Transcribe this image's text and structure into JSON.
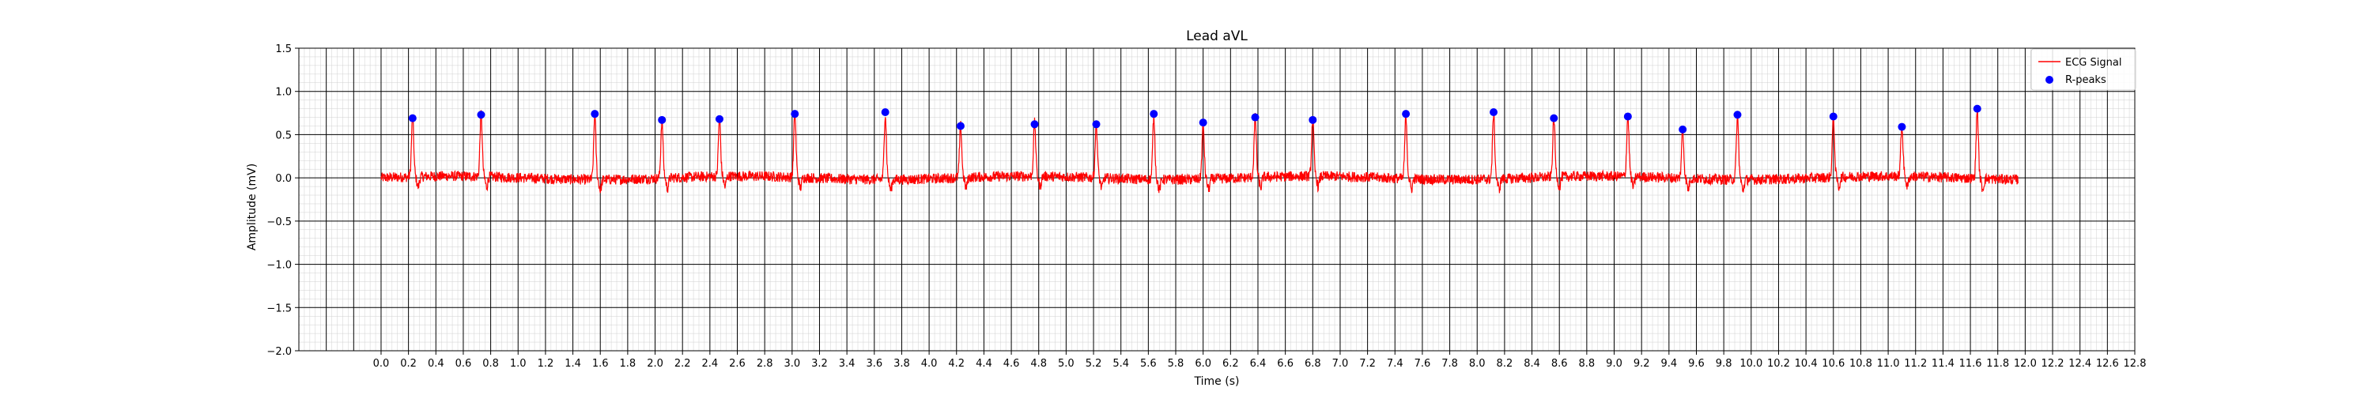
{
  "chart_data": {
    "type": "line",
    "title": "Lead aVL",
    "xlabel": "Time (s)",
    "ylabel": "Amplitude (mV)",
    "xlim": [
      -0.6,
      12.8
    ],
    "ylim": [
      -2.0,
      1.5
    ],
    "x_ticks": [
      0.0,
      0.2,
      0.4,
      0.6,
      0.8,
      1.0,
      1.2,
      1.4,
      1.6,
      1.8,
      2.0,
      2.2,
      2.4,
      2.6,
      2.8,
      3.0,
      3.2,
      3.4,
      3.6,
      3.8,
      4.0,
      4.2,
      4.4,
      4.6,
      4.8,
      5.0,
      5.2,
      5.4,
      5.6,
      5.8,
      6.0,
      6.2,
      6.4,
      6.6,
      6.8,
      7.0,
      7.2,
      7.4,
      7.6,
      7.8,
      8.0,
      8.2,
      8.4,
      8.6,
      8.8,
      9.0,
      9.2,
      9.4,
      9.6,
      9.8,
      10.0,
      10.2,
      10.4,
      10.6,
      10.8,
      11.0,
      11.2,
      11.4,
      11.6,
      11.8,
      12.0,
      12.2,
      12.4,
      12.6,
      12.8
    ],
    "y_ticks": [
      -2.0,
      -1.5,
      -1.0,
      -0.5,
      0.0,
      0.5,
      1.0,
      1.5
    ],
    "grid": true,
    "legend_position": "top-right",
    "series": [
      {
        "name": "ECG Signal",
        "type": "line",
        "color": "#ff0000",
        "x_range": [
          0.0,
          11.95
        ],
        "sample_rate": 100,
        "baseline_noise": 0.06
      },
      {
        "name": "R-peaks",
        "type": "scatter",
        "color": "#0000ff",
        "points": [
          {
            "x": 0.23,
            "y": 0.69
          },
          {
            "x": 0.73,
            "y": 0.73
          },
          {
            "x": 1.56,
            "y": 0.74
          },
          {
            "x": 2.05,
            "y": 0.67
          },
          {
            "x": 2.47,
            "y": 0.68
          },
          {
            "x": 3.02,
            "y": 0.74
          },
          {
            "x": 3.68,
            "y": 0.76
          },
          {
            "x": 4.23,
            "y": 0.6
          },
          {
            "x": 4.77,
            "y": 0.62
          },
          {
            "x": 5.22,
            "y": 0.62
          },
          {
            "x": 5.64,
            "y": 0.74
          },
          {
            "x": 6.0,
            "y": 0.64
          },
          {
            "x": 6.38,
            "y": 0.7
          },
          {
            "x": 6.8,
            "y": 0.67
          },
          {
            "x": 7.48,
            "y": 0.74
          },
          {
            "x": 8.12,
            "y": 0.76
          },
          {
            "x": 8.56,
            "y": 0.69
          },
          {
            "x": 9.1,
            "y": 0.71
          },
          {
            "x": 9.5,
            "y": 0.56
          },
          {
            "x": 9.9,
            "y": 0.73
          },
          {
            "x": 10.6,
            "y": 0.71
          },
          {
            "x": 11.1,
            "y": 0.59
          },
          {
            "x": 11.65,
            "y": 0.8
          }
        ]
      }
    ]
  }
}
